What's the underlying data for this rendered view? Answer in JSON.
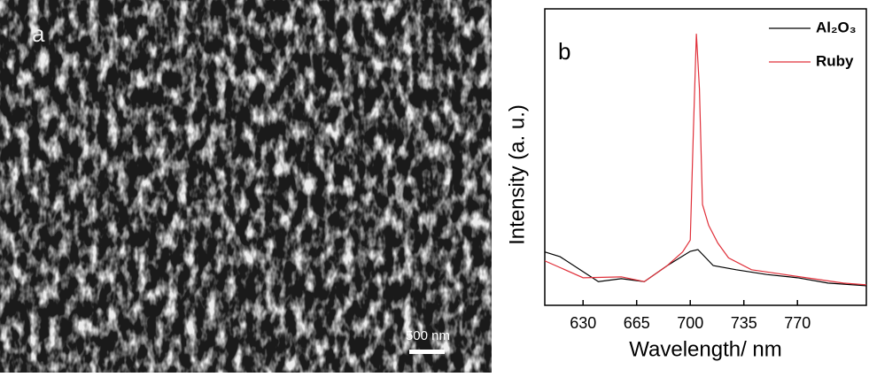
{
  "panel_a": {
    "label": "a",
    "scale_bar": "500 nm"
  },
  "chart_data": {
    "type": "line",
    "panel_label": "b",
    "x_label": "Wavelength/ nm",
    "y_label": "Intensity (a. u.)",
    "xlim": [
      605,
      815
    ],
    "xticks": [
      630,
      665,
      700,
      735,
      770
    ],
    "ylim": [
      0,
      100
    ],
    "grid": false,
    "legend": "top-right",
    "series": [
      {
        "name": "Al₂O₃",
        "color": "#000000",
        "x": [
          605,
          615,
          640,
          655,
          670,
          685,
          700,
          705,
          715,
          730,
          750,
          770,
          790,
          815
        ],
        "values": [
          18,
          16.4,
          8,
          9,
          8,
          13.4,
          18.2,
          18.8,
          13.4,
          12,
          10.4,
          9.3,
          7.5,
          6.6
        ]
      },
      {
        "name": "Ruby",
        "color": "#e0303a",
        "x": [
          605,
          630,
          655,
          670,
          685,
          695,
          700,
          702,
          704,
          706,
          708,
          712,
          718,
          725,
          740,
          760,
          780,
          800,
          815
        ],
        "values": [
          15,
          9.3,
          9.6,
          8,
          13.4,
          18,
          22,
          58,
          91.6,
          73,
          34,
          27,
          21,
          16,
          12,
          10.5,
          9,
          7.5,
          6.9
        ]
      }
    ]
  }
}
